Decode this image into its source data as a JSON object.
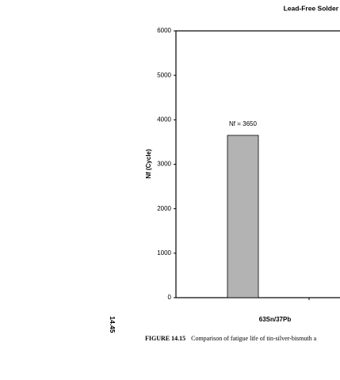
{
  "header": "Lead-Free Solder",
  "page_number": "14.45",
  "caption": {
    "label": "FIGURE 14.15",
    "text": "Comparison of fatigue life of tin-silver-bismuth a"
  },
  "chart_data": {
    "type": "bar",
    "y_label": "Nf (Cycle)",
    "categories": [
      "63Sn/37Pb"
    ],
    "values": [
      3650
    ],
    "value_labels": [
      "Nf = 3650"
    ],
    "color": "#b3b3b3",
    "ylim": [
      0,
      6000
    ],
    "yticks": [
      0,
      1000,
      2000,
      3000,
      4000,
      5000,
      6000
    ],
    "grid": false
  }
}
